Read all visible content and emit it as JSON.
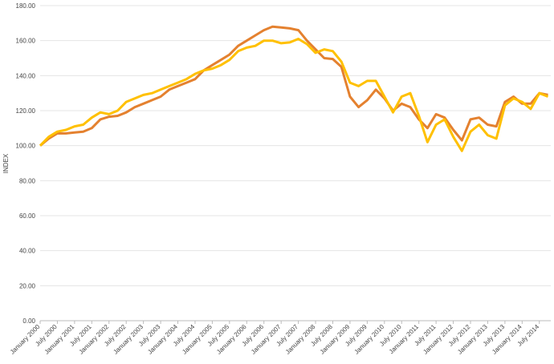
{
  "chart_data": {
    "type": "line",
    "y_label": "INDEX",
    "categories": [
      "January 2000",
      null,
      "July 2000",
      null,
      "January 2001",
      null,
      "July 2001",
      null,
      "January 2002",
      null,
      "July 2002",
      null,
      "January 2003",
      null,
      "July 2003",
      null,
      "January 2004",
      null,
      "July 2004",
      null,
      "January 2005",
      null,
      "July 2005",
      null,
      "January 2006",
      null,
      "July 2006",
      null,
      "January 2007",
      null,
      "July 2007",
      null,
      "January 2008",
      null,
      "July 2008",
      null,
      "January 2009",
      null,
      "July 2009",
      null,
      "January 2010",
      null,
      "July 2010",
      null,
      "January 2011",
      null,
      "July 2011",
      null,
      "January 2012",
      null,
      "July 2012",
      null,
      "January 2013",
      null,
      "July 2013",
      null,
      "January 2014",
      null,
      "July 2014",
      null
    ],
    "series": [
      {
        "color": "#e4812f",
        "values": [
          100,
          104,
          107,
          107,
          107.5,
          108,
          110,
          115,
          116.5,
          117,
          119,
          122,
          124,
          126,
          128,
          132,
          134,
          136,
          138,
          143,
          146,
          149,
          152,
          157,
          160,
          163,
          166,
          168,
          167.5,
          167,
          166,
          160,
          155,
          150,
          149.5,
          145,
          128,
          122,
          126,
          132,
          127,
          120,
          124,
          122,
          115,
          110,
          118,
          116,
          109,
          103,
          115,
          116,
          112,
          111,
          125,
          128,
          124,
          124,
          130,
          129
        ]
      },
      {
        "color": "#ffc000",
        "values": [
          100,
          105,
          108,
          109,
          111,
          112,
          116,
          119,
          118,
          120,
          125,
          127,
          129,
          130,
          132,
          134,
          136,
          138,
          141,
          143,
          144,
          146,
          149,
          154,
          156,
          157,
          160,
          160,
          158.5,
          159,
          161,
          158,
          153,
          155,
          154,
          148,
          136,
          134,
          137,
          137,
          128,
          119,
          128,
          130,
          117,
          102,
          112,
          115,
          105,
          97,
          108,
          112,
          106,
          104,
          123,
          127,
          125,
          121,
          130,
          128
        ]
      }
    ],
    "ylim": [
      0,
      180
    ],
    "yticks": [
      {
        "value": 0,
        "label": "0.00"
      },
      {
        "value": 20,
        "label": "20.00"
      },
      {
        "value": 40,
        "label": "40.00"
      },
      {
        "value": 60,
        "label": "60.00"
      },
      {
        "value": 80,
        "label": "80.00"
      },
      {
        "value": 100,
        "label": "100.00"
      },
      {
        "value": 120,
        "label": "120.00"
      },
      {
        "value": 140,
        "label": "140.00"
      },
      {
        "value": 160,
        "label": "160.00"
      },
      {
        "value": 180,
        "label": "180.00"
      }
    ],
    "grid": true
  }
}
